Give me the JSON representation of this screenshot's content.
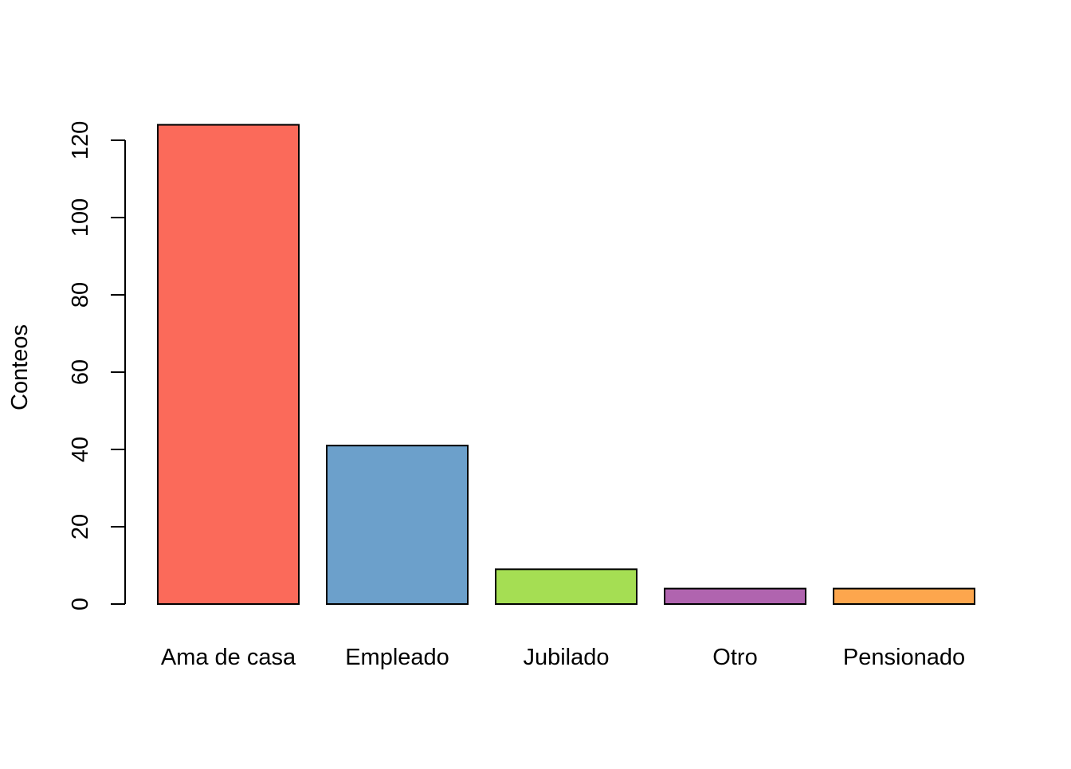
{
  "chart_data": {
    "type": "bar",
    "title": "",
    "xlabel": "",
    "ylabel": "Conteos",
    "categories": [
      "Ama de casa",
      "Empleado",
      "Jubilado",
      "Otro",
      "Pensionado"
    ],
    "values": [
      124,
      41,
      9,
      4,
      4
    ],
    "colors": [
      "#FB6A5A",
      "#6CA0CB",
      "#A5DE53",
      "#B064AF",
      "#FDA64D"
    ],
    "ylim": [
      0,
      120
    ],
    "yticks": [
      "0",
      "20",
      "40",
      "60",
      "80",
      "100",
      "120"
    ],
    "grid": false,
    "legend": "none"
  }
}
